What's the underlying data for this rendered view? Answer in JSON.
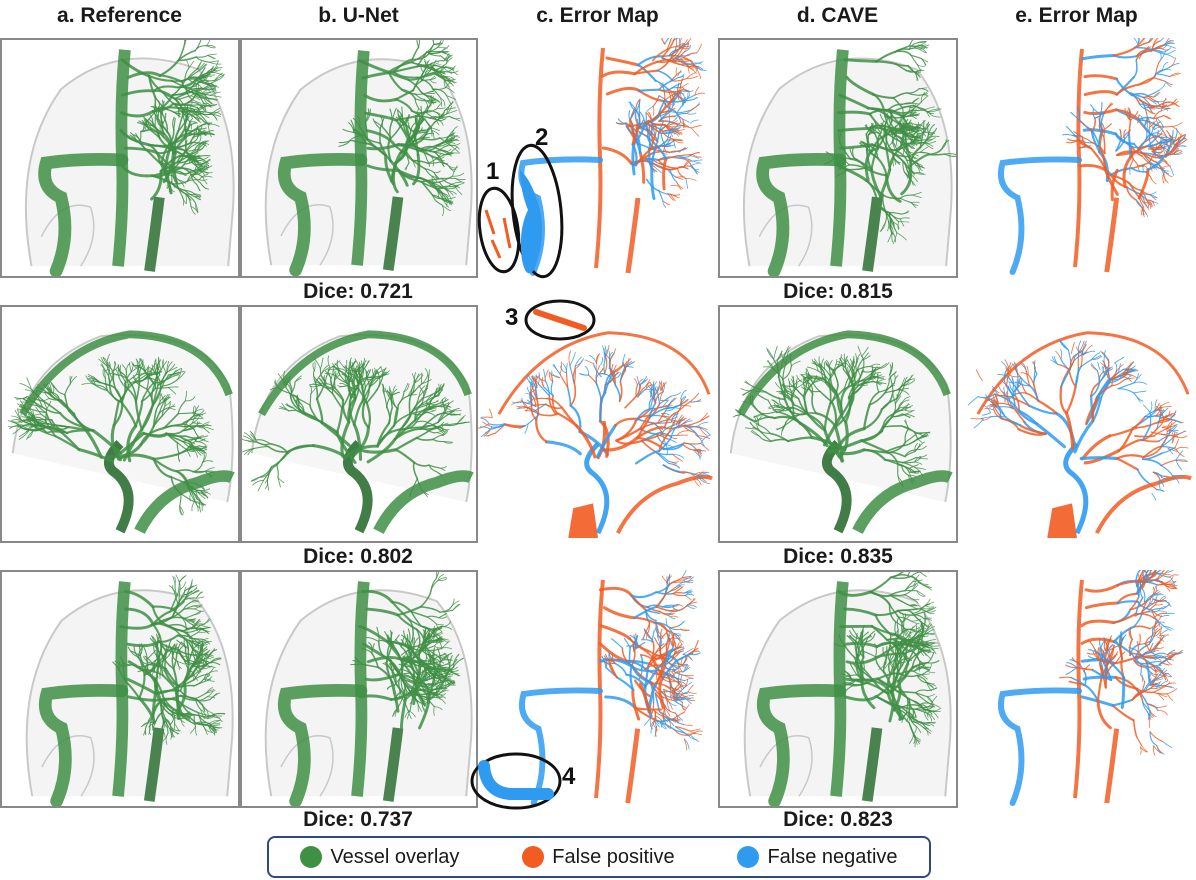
{
  "columns": [
    {
      "label": "a. Reference"
    },
    {
      "label": "b. U-Net"
    },
    {
      "label": "c. Error Map"
    },
    {
      "label": "d. CAVE"
    },
    {
      "label": "e. Error Map"
    }
  ],
  "rows": [
    {
      "view": "frontal",
      "unet_dice": "Dice: 0.721",
      "cave_dice": "Dice: 0.815"
    },
    {
      "view": "lateral",
      "unet_dice": "Dice: 0.802",
      "cave_dice": "Dice: 0.835"
    },
    {
      "view": "frontal",
      "unet_dice": "Dice: 0.737",
      "cave_dice": "Dice: 0.823"
    }
  ],
  "annotations": [
    "1",
    "2",
    "3",
    "4"
  ],
  "legend": [
    {
      "label": "Vessel overlay",
      "color": "#3f8f45"
    },
    {
      "label": "False positive",
      "color": "#f25c22"
    },
    {
      "label": "False negative",
      "color": "#2f9bf0"
    }
  ],
  "colors": {
    "vessel": "#3f8f45",
    "vessel_dark": "#2d6e33",
    "fp": "#f25c22",
    "fn": "#2f9bf0",
    "skull": "#c8c8c8"
  }
}
